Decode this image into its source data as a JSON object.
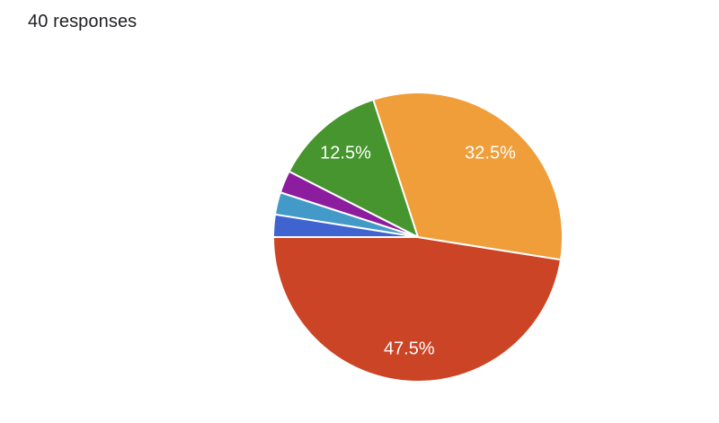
{
  "header": {
    "response_count": "40 responses"
  },
  "chart_data": {
    "type": "pie",
    "slices": [
      {
        "value": 19,
        "label": "47.5%",
        "color": "#cc4426",
        "show_label": true
      },
      {
        "value": 13,
        "label": "32.5%",
        "color": "#ef9e3a",
        "show_label": true
      },
      {
        "value": 5,
        "label": "12.5%",
        "color": "#46952e",
        "show_label": true
      },
      {
        "value": 1,
        "label": "2.5%",
        "color": "#8c1d9e",
        "show_label": false
      },
      {
        "value": 1,
        "label": "2.5%",
        "color": "#4399c8",
        "show_label": false
      },
      {
        "value": 1,
        "label": "2.5%",
        "color": "#4064cf",
        "show_label": false
      }
    ]
  }
}
